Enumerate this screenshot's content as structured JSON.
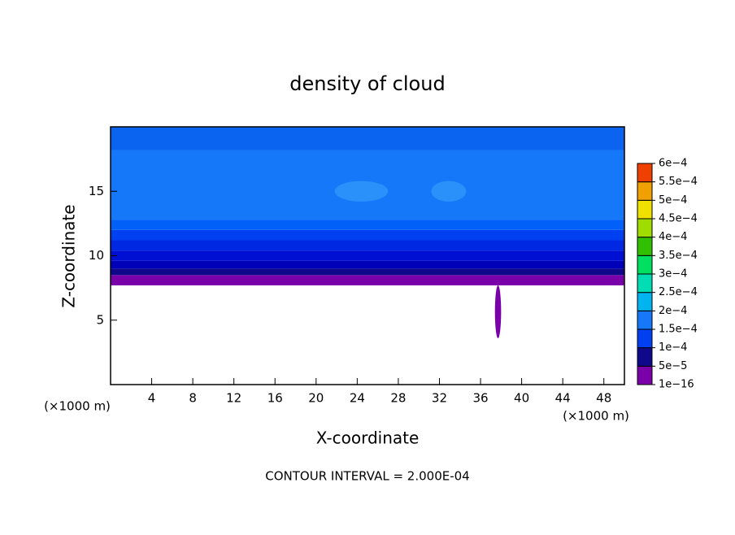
{
  "chart_data": {
    "type": "contour",
    "title": "density of cloud",
    "xlabel": "X-coordinate",
    "ylabel": "Z-coordinate",
    "xunit": "(×1000 m)",
    "xunit_right": "(×1000 m)",
    "note": "CONTOUR INTERVAL = 2.000E-04",
    "xlim": [
      0,
      50
    ],
    "ylim": [
      0,
      20
    ],
    "xticks": [
      4,
      8,
      12,
      16,
      20,
      24,
      28,
      32,
      36,
      40,
      44,
      48
    ],
    "yticks": [
      5,
      10,
      15
    ],
    "bands": [
      {
        "xlim": [
          0,
          50
        ],
        "zlim": [
          7.7,
          8.5
        ],
        "color": "#7a00aa"
      },
      {
        "xlim": [
          0,
          50
        ],
        "zlim": [
          8.5,
          9.0
        ],
        "color": "#10088a"
      },
      {
        "xlim": [
          0,
          50
        ],
        "zlim": [
          9.0,
          9.6
        ],
        "color": "#0000b8"
      },
      {
        "xlim": [
          0,
          50
        ],
        "zlim": [
          9.6,
          10.4
        ],
        "color": "#0010d2"
      },
      {
        "xlim": [
          0,
          50
        ],
        "zlim": [
          10.4,
          11.2
        ],
        "color": "#0028e2"
      },
      {
        "xlim": [
          0,
          50
        ],
        "zlim": [
          11.2,
          12.0
        ],
        "color": "#0040f0"
      },
      {
        "xlim": [
          0,
          50
        ],
        "zlim": [
          12.0,
          12.8
        ],
        "color": "#0060f8"
      },
      {
        "xlim": [
          0,
          50
        ],
        "zlim": [
          12.8,
          18.2
        ],
        "color": "#1478f8"
      },
      {
        "xlim": [
          0,
          50
        ],
        "zlim": [
          18.2,
          20
        ],
        "color": "#0a64f0"
      },
      {
        "xlim": [
          21.8,
          27.0
        ],
        "zlim": [
          14.2,
          15.8
        ],
        "color": "#2a90fa"
      },
      {
        "xlim": [
          31.2,
          34.6
        ],
        "zlim": [
          14.2,
          15.8
        ],
        "color": "#2a90fa"
      },
      {
        "xlim": [
          37.4,
          38.0
        ],
        "zlim": [
          3.6,
          7.7
        ],
        "color": "#7a00aa"
      }
    ],
    "colorbar": {
      "ticks": [
        {
          "value": 1e-16,
          "label": "1e−16"
        },
        {
          "value": 5e-05,
          "label": "5e−5"
        },
        {
          "value": 0.0001,
          "label": "1e−4"
        },
        {
          "value": 0.00015,
          "label": "1.5e−4"
        },
        {
          "value": 0.0002,
          "label": "2e−4"
        },
        {
          "value": 0.00025,
          "label": "2.5e−4"
        },
        {
          "value": 0.0003,
          "label": "3e−4"
        },
        {
          "value": 0.00035,
          "label": "3.5e−4"
        },
        {
          "value": 0.0004,
          "label": "4e−4"
        },
        {
          "value": 0.00045,
          "label": "4.5e−4"
        },
        {
          "value": 0.0005,
          "label": "5e−4"
        },
        {
          "value": 0.00055,
          "label": "5.5e−4"
        },
        {
          "value": 0.0006,
          "label": "6e−4"
        }
      ],
      "colors": [
        "#7a00aa",
        "#10088a",
        "#0040f0",
        "#1478f8",
        "#00b4f0",
        "#00dcb4",
        "#00e060",
        "#30c000",
        "#a0dc00",
        "#f0e000",
        "#f0a000",
        "#f04000",
        "#f08080"
      ]
    }
  }
}
